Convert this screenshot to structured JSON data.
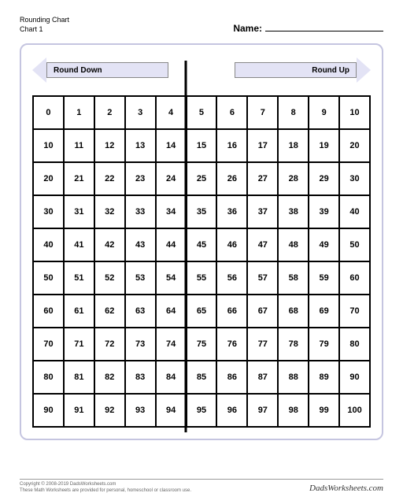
{
  "header": {
    "title": "Rounding Chart",
    "subtitle": "Chart 1",
    "name_label": "Name:"
  },
  "arrows": {
    "left_label": "Round Down",
    "right_label": "Round Up",
    "fill_color": "#e3e3f5",
    "border_color": "#888888"
  },
  "chart": {
    "type": "table",
    "rows": 10,
    "cols": 11,
    "start": 0,
    "end": 100,
    "divider_after_col": 5,
    "border_color": "#000000",
    "background_color": "#ffffff",
    "font_size": 11,
    "font_weight": "bold",
    "data": [
      [
        0,
        1,
        2,
        3,
        4,
        5,
        6,
        7,
        8,
        9,
        10
      ],
      [
        10,
        11,
        12,
        13,
        14,
        15,
        16,
        17,
        18,
        19,
        20
      ],
      [
        20,
        21,
        22,
        23,
        24,
        25,
        26,
        27,
        28,
        29,
        30
      ],
      [
        30,
        31,
        32,
        33,
        34,
        35,
        36,
        37,
        38,
        39,
        40
      ],
      [
        40,
        41,
        42,
        43,
        44,
        45,
        46,
        47,
        48,
        49,
        50
      ],
      [
        50,
        51,
        52,
        53,
        54,
        55,
        56,
        57,
        58,
        59,
        60
      ],
      [
        60,
        61,
        62,
        63,
        64,
        65,
        66,
        67,
        68,
        69,
        70
      ],
      [
        70,
        71,
        72,
        73,
        74,
        75,
        76,
        77,
        78,
        79,
        80
      ],
      [
        80,
        81,
        82,
        83,
        84,
        85,
        86,
        87,
        88,
        89,
        90
      ],
      [
        90,
        91,
        92,
        93,
        94,
        95,
        96,
        97,
        98,
        99,
        100
      ]
    ]
  },
  "frame": {
    "border_color": "#c5c5e0",
    "border_radius": 10
  },
  "footer": {
    "copyright": "Copyright © 2008-2019 DadsWorksheets.com",
    "disclaimer": "These Math Worksheets are provided for personal, homeschool or classroom use.",
    "brand": "DadsWorksheets.com"
  }
}
